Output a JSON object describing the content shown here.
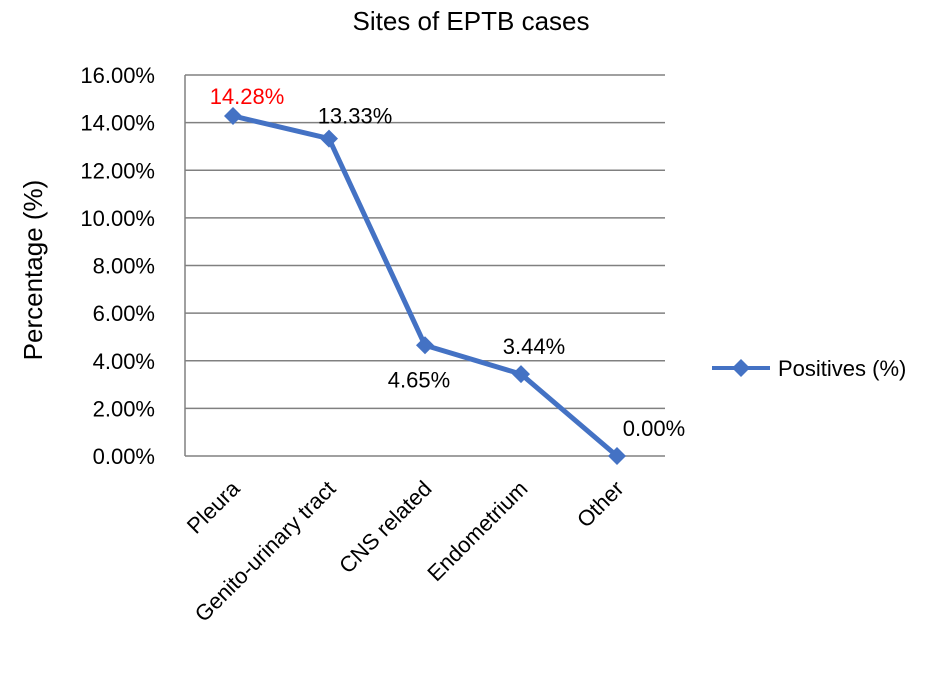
{
  "chart_data": {
    "type": "line",
    "title": "Sites of EPTB cases",
    "xlabel": "",
    "ylabel": "Percentage  (%)",
    "ylim": [
      0,
      16
    ],
    "y_ticks": [
      "0.00%",
      "2.00%",
      "4.00%",
      "6.00%",
      "8.00%",
      "10.00%",
      "12.00%",
      "14.00%",
      "16.00%"
    ],
    "categories": [
      "Pleura",
      "Genito-urinary tract",
      "CNS related",
      "Endometrium",
      "Other"
    ],
    "series": [
      {
        "name": "Positives (%)",
        "values": [
          14.28,
          13.33,
          4.65,
          3.44,
          0.0
        ],
        "data_labels": [
          "14.28%",
          "13.33%",
          "4.65%",
          "3.44%",
          "0.00%"
        ],
        "label_colors": [
          "#ff0000",
          "#000000",
          "#000000",
          "#000000",
          "#000000"
        ]
      }
    ],
    "grid": true,
    "legend_position": "right",
    "colors": {
      "series": "#4472c4",
      "gridline": "#808080",
      "highlight_label": "#ff0000"
    }
  }
}
